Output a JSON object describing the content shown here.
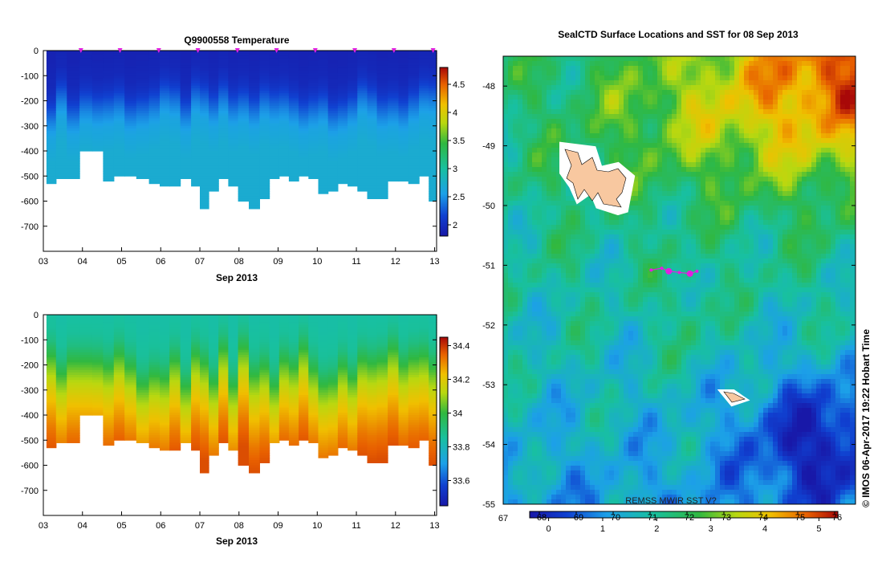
{
  "chart_data": [
    {
      "type": "heatmap",
      "title": "Q9900558  Temperature",
      "xlabel": "Sep 2013",
      "ylabel": "",
      "x_ticks": [
        "03",
        "04",
        "05",
        "06",
        "07",
        "08",
        "09",
        "10",
        "11",
        "12",
        "13"
      ],
      "xlim": [
        3.0,
        13.05
      ],
      "y_ticks": [
        "0",
        "-100",
        "-200",
        "-300",
        "-400",
        "-500",
        "-600",
        "-700"
      ],
      "ylim": [
        -800,
        0
      ],
      "colorbar": {
        "ticks": [
          "2",
          "2.5",
          "3",
          "3.5",
          "4",
          "4.5"
        ],
        "range": [
          1.8,
          4.8
        ]
      },
      "profiles": {
        "days": [
          3.2,
          3.45,
          3.75,
          4.1,
          4.4,
          4.65,
          4.95,
          5.2,
          5.55,
          5.85,
          6.1,
          6.35,
          6.65,
          6.9,
          7.1,
          7.35,
          7.6,
          7.85,
          8.1,
          8.4,
          8.65,
          8.9,
          9.15,
          9.4,
          9.65,
          9.9,
          10.15,
          10.4,
          10.65,
          10.9,
          11.15,
          11.4,
          11.65,
          11.95,
          12.2,
          12.45,
          12.75,
          12.95
        ],
        "max_depth": [
          530,
          510,
          510,
          400,
          400,
          520,
          500,
          500,
          510,
          530,
          540,
          540,
          510,
          540,
          630,
          560,
          510,
          540,
          600,
          630,
          590,
          510,
          500,
          520,
          500,
          510,
          570,
          560,
          530,
          540,
          560,
          590,
          590,
          520,
          520,
          530,
          500,
          600
        ],
        "temperature_profile_depths": [
          0,
          100,
          150,
          200,
          250,
          300,
          400,
          500
        ],
        "temperature_profile_values": [
          1.9,
          1.95,
          2.05,
          2.25,
          2.45,
          2.6,
          2.7,
          2.7
        ],
        "markers": [
          3.96,
          4.96,
          5.95,
          6.95,
          7.96,
          8.96,
          9.95,
          10.96,
          11.96,
          12.96
        ]
      }
    },
    {
      "type": "heatmap",
      "title": "",
      "xlabel": "Sep 2013",
      "ylabel": "",
      "x_ticks": [
        "03",
        "04",
        "05",
        "06",
        "07",
        "08",
        "09",
        "10",
        "11",
        "12",
        "13"
      ],
      "xlim": [
        3.0,
        13.05
      ],
      "y_ticks": [
        "0",
        "-100",
        "-200",
        "-300",
        "-400",
        "-500",
        "-600",
        "-700"
      ],
      "ylim": [
        -800,
        0
      ],
      "colorbar": {
        "ticks": [
          "33.6",
          "33.8",
          "34",
          "34.2",
          "34.4"
        ],
        "range": [
          33.45,
          34.45
        ]
      },
      "salinity_profile_depths": [
        0,
        100,
        150,
        200,
        250,
        300,
        350,
        400,
        450,
        500,
        550,
        600
      ],
      "salinity_profile_values": [
        33.84,
        33.86,
        33.9,
        33.98,
        34.06,
        34.13,
        34.19,
        34.24,
        34.28,
        34.32,
        34.35,
        34.37
      ]
    },
    {
      "type": "heatmap",
      "title": "SealCTD Surface Locations and SST for 08 Sep 2013",
      "y_ticks": [
        "-48",
        "-49",
        "-50",
        "-51",
        "-52",
        "-53",
        "-54",
        "-55"
      ],
      "x_tick_left": "67",
      "ylim": [
        -55,
        -47.5
      ],
      "colorbar": {
        "ticks": [
          "0",
          "1",
          "2",
          "3",
          "4",
          "5"
        ],
        "range": [
          -0.35,
          5.35
        ],
        "fahrenheit_ticks": [
          "68",
          "69",
          "70",
          "71",
          "72",
          "73",
          "74",
          "75",
          "76"
        ]
      },
      "source_label": "REMSS MWIR SST V?",
      "timestamp": "© IMOS 06-Apr-2017 19:22 Hobart Time",
      "sst_ranges": [
        0.0,
        5.2
      ],
      "colors": {
        "navy": "#0a0a7c",
        "blue": "#0a3cd8",
        "lightblue": "#1e9ee8",
        "teal": "#18b8a0",
        "green": "#2cb050",
        "yellowgreen": "#9cd81e",
        "yellow": "#f0e000",
        "orange": "#f08c0a",
        "red": "#b80a0a",
        "darkred": "#8c0000",
        "land": "#f8c8a0",
        "marker": "#e020e0"
      },
      "tracks": [
        {
          "lat": -51.08,
          "lon_frac": 0.42
        },
        {
          "lat": -51.05,
          "lon_frac": 0.45
        },
        {
          "lat": -51.1,
          "lon_frac": 0.47
        },
        {
          "lat": -51.12,
          "lon_frac": 0.5
        },
        {
          "lat": -51.14,
          "lon_frac": 0.53
        },
        {
          "lat": -51.1,
          "lon_frac": 0.55
        }
      ]
    }
  ]
}
